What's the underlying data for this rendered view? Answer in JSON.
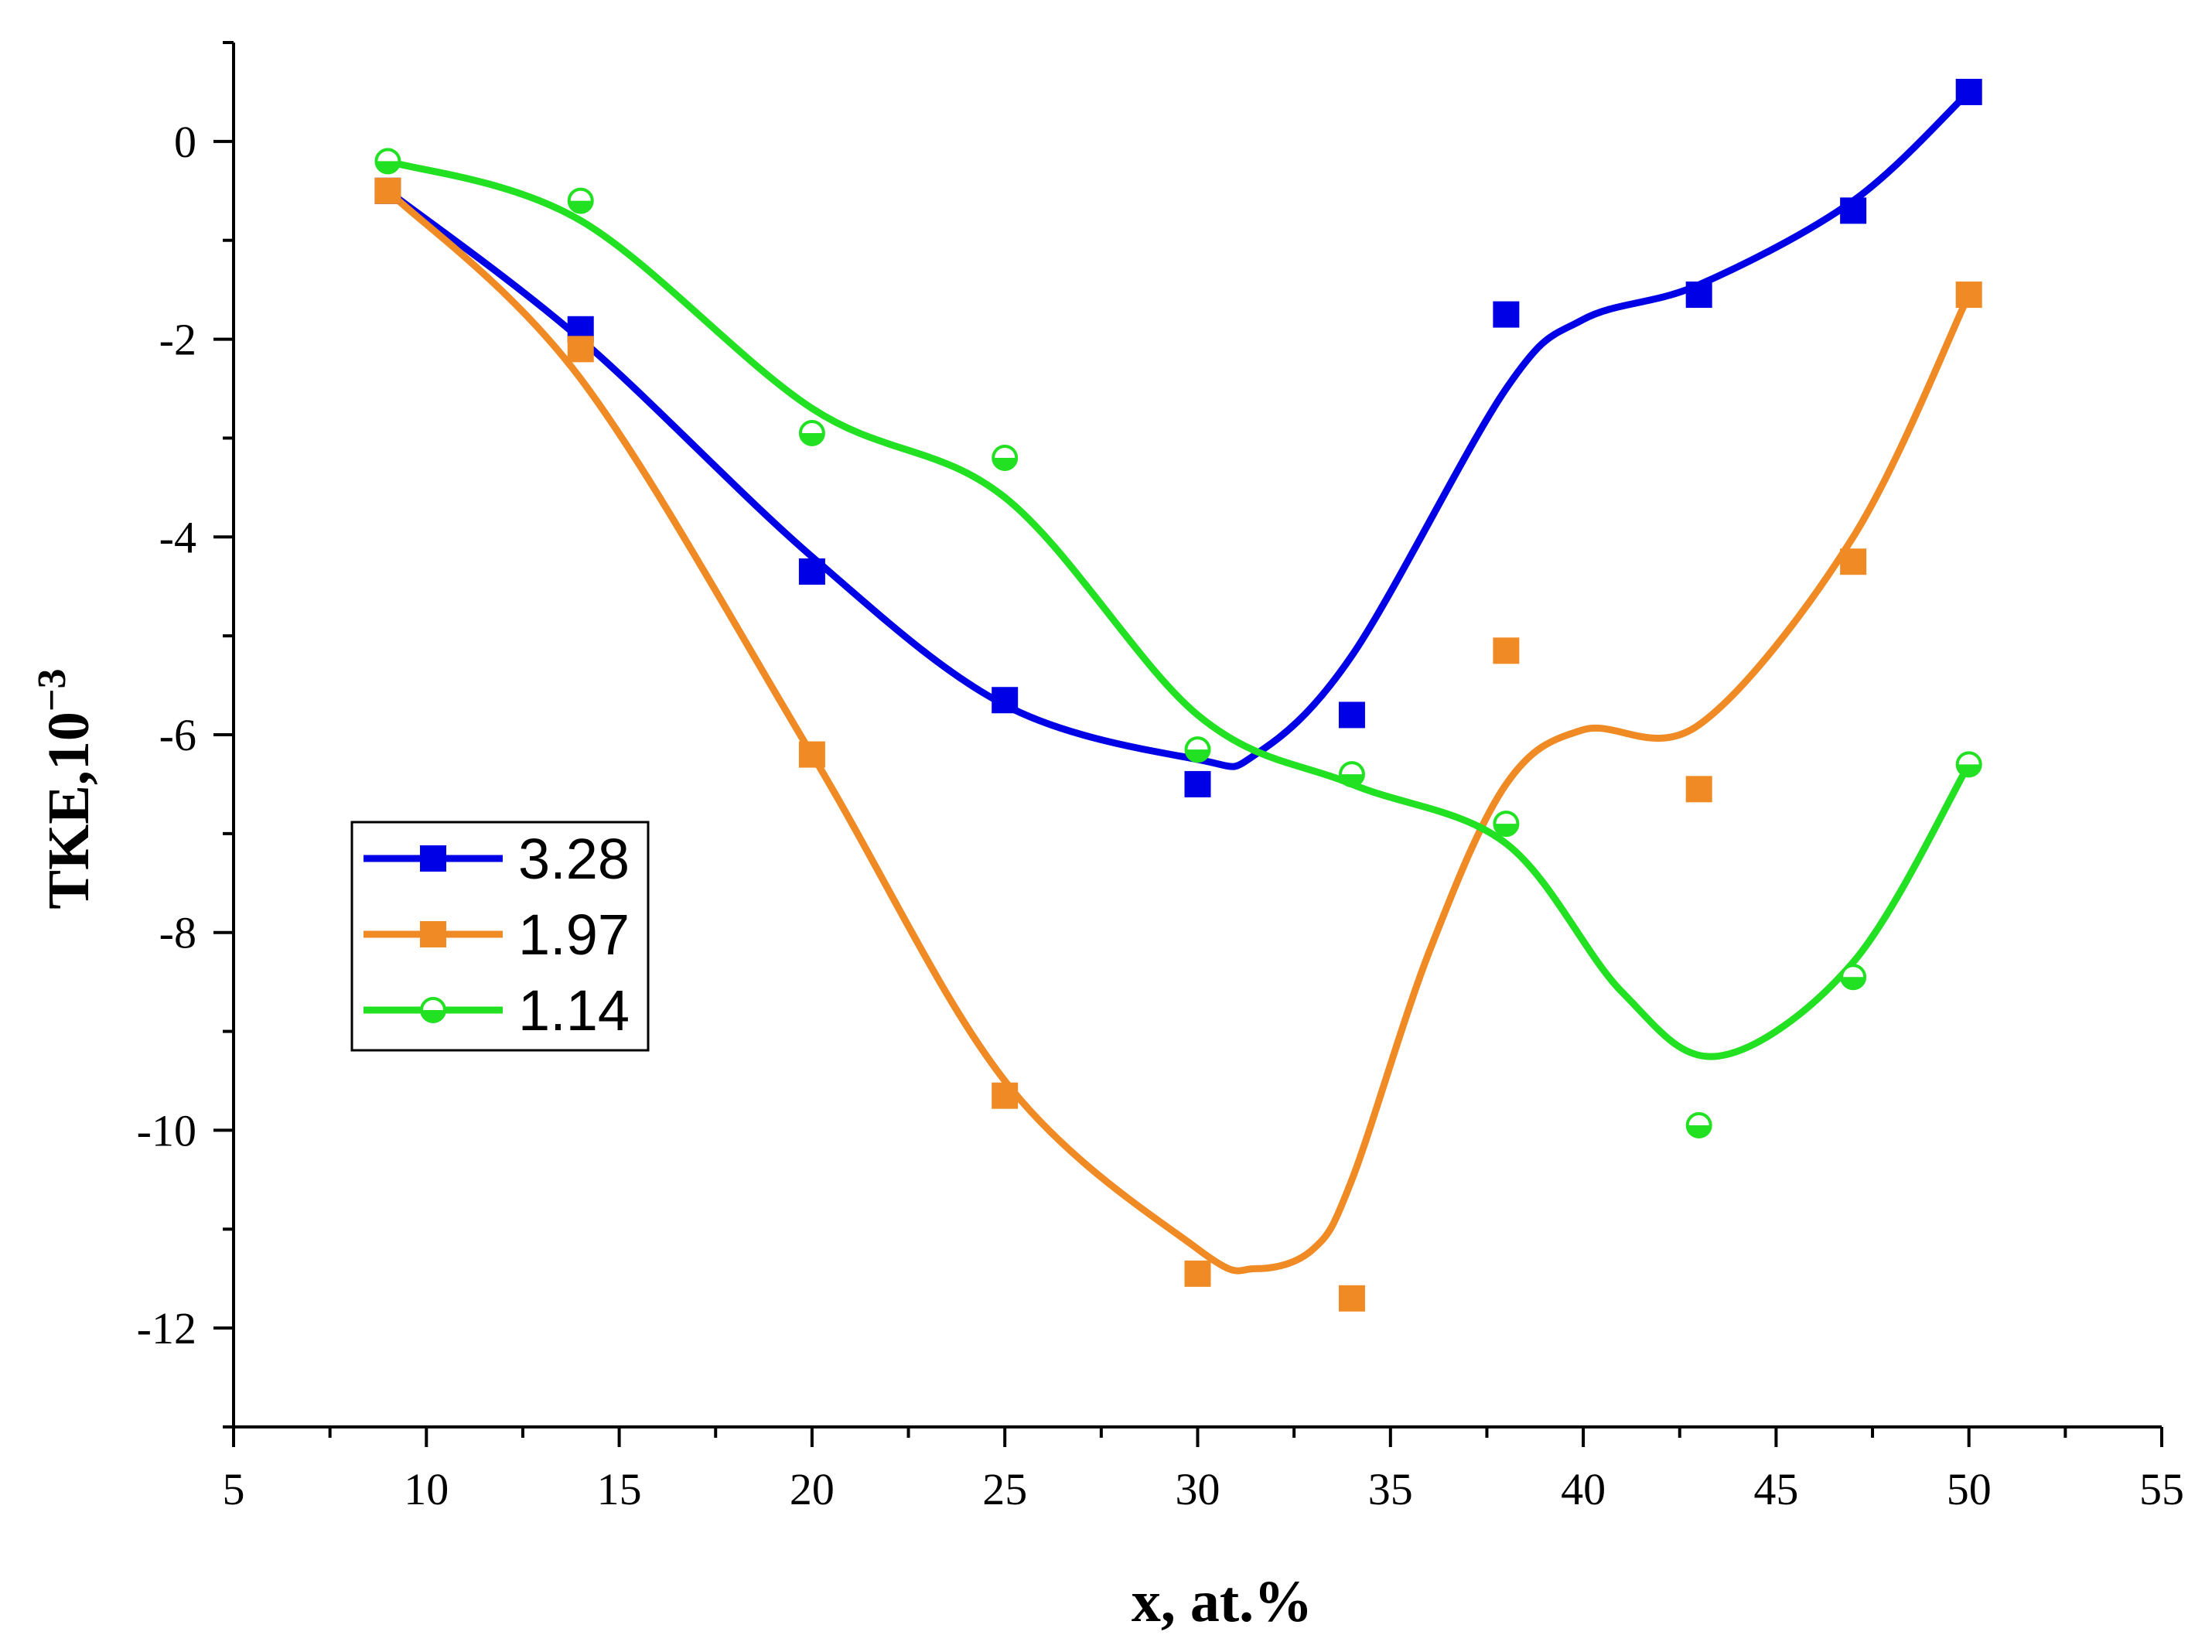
{
  "chart_data": {
    "type": "scatter",
    "title": "",
    "xlabel": "x, at.%",
    "ylabel": "TKE,10",
    "ylabel_exponent": "−3",
    "xlim": [
      5,
      55
    ],
    "ylim": [
      -13,
      1
    ],
    "xticks": [
      5,
      10,
      15,
      20,
      25,
      30,
      35,
      40,
      45,
      50,
      55
    ],
    "xtick_labels": [
      "5",
      "10",
      "15",
      "20",
      "25",
      "30",
      "35",
      "40",
      "45",
      "50",
      "55"
    ],
    "yticks": [
      0,
      -2,
      -4,
      -6,
      -8,
      -10,
      -12
    ],
    "ytick_labels": [
      "0",
      "-2",
      "-4",
      "-6",
      "-8",
      "-10",
      "-12"
    ],
    "grid": false,
    "legend_position": "middle-left",
    "series": [
      {
        "name": "3.28",
        "color": "#0000e6",
        "marker": "square",
        "x": [
          9,
          14,
          20,
          25,
          30,
          34,
          38,
          43,
          47,
          50
        ],
        "y": [
          -0.5,
          -1.9,
          -4.35,
          -5.65,
          -6.5,
          -5.8,
          -1.75,
          -1.55,
          -0.7,
          0.5
        ],
        "smooth_x": [
          9,
          14,
          20,
          25,
          30,
          31.5,
          34,
          38,
          40,
          43,
          47,
          50
        ],
        "smooth_y": [
          -0.5,
          -2.0,
          -4.2,
          -5.7,
          -6.25,
          -6.2,
          -5.2,
          -2.5,
          -1.8,
          -1.45,
          -0.6,
          0.5
        ]
      },
      {
        "name": "1.97",
        "color": "#f08a24",
        "marker": "square",
        "x": [
          9,
          14,
          20,
          25,
          30,
          34,
          38,
          43,
          47,
          50
        ],
        "y": [
          -0.5,
          -2.1,
          -6.2,
          -9.65,
          -11.45,
          -11.7,
          -5.15,
          -6.55,
          -4.25,
          -1.55
        ],
        "smooth_x": [
          9,
          14,
          20,
          25,
          30,
          31.5,
          33,
          34,
          36,
          38,
          40,
          43,
          47,
          50
        ],
        "smooth_y": [
          -0.5,
          -2.4,
          -6.2,
          -9.5,
          -11.2,
          -11.4,
          -11.2,
          -10.5,
          -8.2,
          -6.5,
          -5.95,
          -5.9,
          -4.0,
          -1.55
        ]
      },
      {
        "name": "1.14",
        "color": "#22e022",
        "marker": "half-circle",
        "x": [
          9,
          14,
          20,
          25,
          30,
          34,
          38,
          43,
          47,
          50
        ],
        "y": [
          -0.2,
          -0.6,
          -2.95,
          -3.2,
          -6.15,
          -6.4,
          -6.9,
          -9.95,
          -8.45,
          -6.3
        ],
        "smooth_x": [
          9,
          14,
          20,
          25,
          30,
          34,
          38,
          41,
          43.5,
          47,
          50
        ],
        "smooth_y": [
          -0.2,
          -0.8,
          -2.7,
          -3.6,
          -5.8,
          -6.5,
          -7.1,
          -8.6,
          -9.25,
          -8.3,
          -6.3
        ]
      }
    ]
  }
}
